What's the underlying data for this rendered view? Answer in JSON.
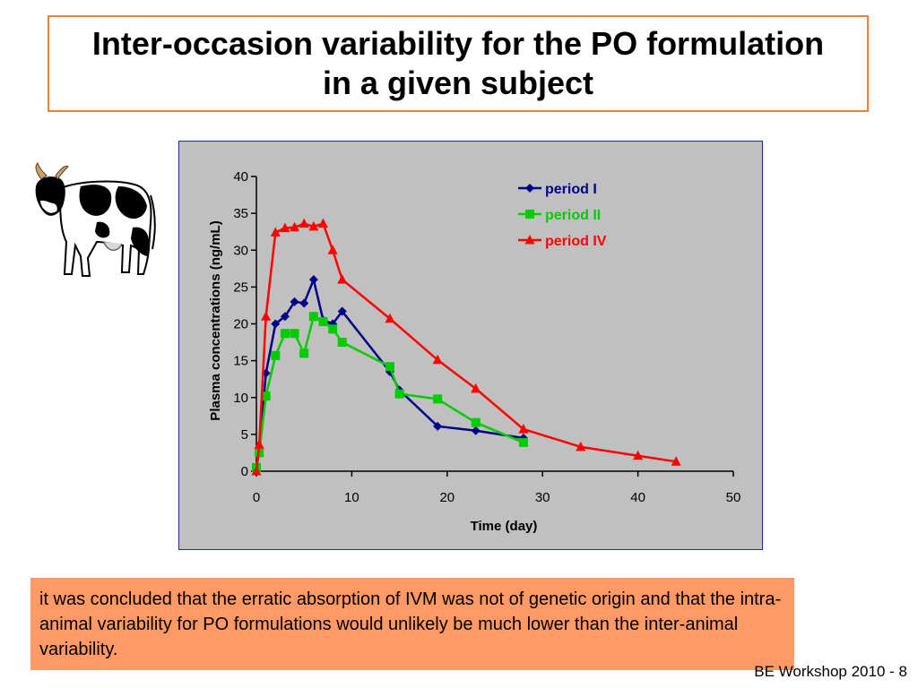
{
  "slide": {
    "title_line1": "Inter-occasion variability for the PO formulation",
    "title_line2": "in a given subject",
    "note": "it was concluded  that the erratic absorption of IVM  was not of genetic origin and that  the intra-animal variability for PO formulations would unlikely  be much lower than the inter-animal variability.",
    "footer": "BE Workshop 2010 - 8",
    "cow_icon": "cow-illustration"
  },
  "chart_data": {
    "type": "line",
    "title": "",
    "xlabel": "Time (day)",
    "ylabel": "Plasma concentrations (ng/mL)",
    "xlim": [
      0,
      50
    ],
    "ylim": [
      0,
      40
    ],
    "xticks": [
      0,
      10,
      20,
      30,
      40,
      50
    ],
    "yticks": [
      0,
      5,
      10,
      15,
      20,
      25,
      30,
      35,
      40
    ],
    "grid": false,
    "legend_position": "top-right",
    "series": [
      {
        "name": "period I",
        "color": "#00008b",
        "marker": "diamond",
        "x": [
          0,
          0.3,
          1,
          2,
          3,
          4,
          5,
          6,
          7,
          8,
          9,
          14,
          15,
          19,
          23,
          28
        ],
        "y": [
          0.5,
          2.5,
          13.3,
          20,
          21,
          23,
          22.8,
          26,
          20.5,
          20,
          21.7,
          13.5,
          11,
          6.1,
          5.5,
          4.5
        ]
      },
      {
        "name": "period II",
        "color": "#00cc00",
        "marker": "square",
        "x": [
          0,
          0.3,
          1,
          2,
          3,
          4,
          5,
          6,
          7,
          8,
          9,
          14,
          15,
          19,
          23,
          28
        ],
        "y": [
          0.5,
          2.5,
          10.2,
          15.7,
          18.7,
          18.7,
          16,
          21,
          20.3,
          19.3,
          17.5,
          14.2,
          10.5,
          9.8,
          6.6,
          3.9
        ]
      },
      {
        "name": "period IV",
        "color": "#ff0000",
        "marker": "triangle",
        "x": [
          0,
          0.3,
          1,
          2,
          3,
          4,
          5,
          6,
          7,
          8,
          9,
          14,
          19,
          23,
          28,
          34,
          40,
          44
        ],
        "y": [
          0,
          3.6,
          21,
          32.4,
          33,
          33.1,
          33.6,
          33.2,
          33.6,
          30,
          26,
          20.7,
          15.1,
          11.2,
          5.7,
          3.3,
          2.1,
          1.3
        ]
      }
    ]
  }
}
